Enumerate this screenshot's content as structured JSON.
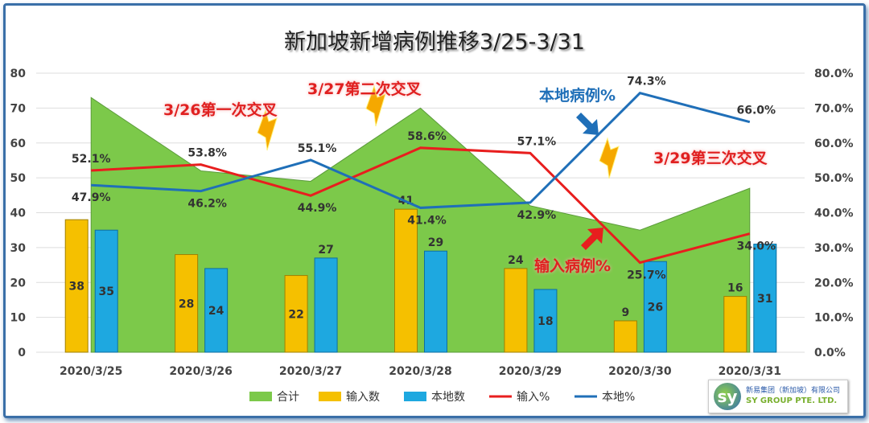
{
  "chart_data": {
    "type": "bar+area+line",
    "title": "新加坡新增病例推移3/25-3/31",
    "categories": [
      "2020/3/25",
      "2020/3/26",
      "2020/3/27",
      "2020/3/28",
      "2020/3/29",
      "2020/3/30",
      "2020/3/31"
    ],
    "ylim": [
      0,
      80
    ],
    "y2lim": [
      0,
      80
    ],
    "yticks": [
      "0",
      "10",
      "20",
      "30",
      "40",
      "50",
      "60",
      "70",
      "80"
    ],
    "y2ticks": [
      "0.0%",
      "10.0%",
      "20.0%",
      "30.0%",
      "40.0%",
      "50.0%",
      "60.0%",
      "70.0%",
      "80.0%"
    ],
    "series": [
      {
        "name": "合计",
        "type": "area",
        "color": "#7cc94a",
        "values": [
          73,
          52,
          49,
          70,
          42,
          35,
          47
        ]
      },
      {
        "name": "输入数",
        "type": "bar",
        "color": "#f5c000",
        "values": [
          38,
          28,
          22,
          41,
          24,
          9,
          16
        ]
      },
      {
        "name": "本地数",
        "type": "bar",
        "color": "#1ea8e0",
        "values": [
          35,
          24,
          27,
          29,
          18,
          26,
          31
        ]
      },
      {
        "name": "输入%",
        "type": "line",
        "axis": "right",
        "color": "#e81e1e",
        "values": [
          52.1,
          53.8,
          44.9,
          58.6,
          57.1,
          25.7,
          34.0
        ]
      },
      {
        "name": "本地%",
        "type": "line",
        "axis": "right",
        "color": "#1f6fb8",
        "values": [
          47.9,
          46.2,
          55.1,
          41.4,
          42.9,
          74.3,
          66.0
        ]
      }
    ],
    "annotations": [
      "3/26第一次交叉",
      "3/27第二次交叉",
      "3/29第三次交叉",
      "本地病例%",
      "输入病例%"
    ],
    "legend_position": "bottom"
  },
  "logo": {
    "mark": "sy",
    "cn": "新易集团（新加坡）有限公司",
    "en": "SY GROUP PTE. LTD."
  }
}
